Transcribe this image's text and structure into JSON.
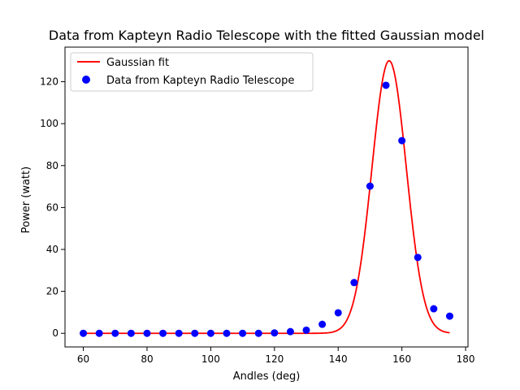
{
  "chart_data": {
    "type": "scatter",
    "title": "Data from Kapteyn Radio Telescope with the fitted Gaussian model",
    "xlabel": "Andles (deg)",
    "ylabel": "Power (watt)",
    "xlim": [
      54.25,
      180.75
    ],
    "ylim": [
      -6.5,
      136.5
    ],
    "xticks": [
      60,
      80,
      100,
      120,
      140,
      160,
      180
    ],
    "yticks": [
      0,
      20,
      40,
      60,
      80,
      100,
      120
    ],
    "grid": false,
    "legend_position": "top-left",
    "series": [
      {
        "name": "Gaussian fit",
        "kind": "line",
        "color": "#ff0000",
        "model": {
          "amplitude": 130,
          "mean": 156,
          "sigma": 5.4,
          "x_start": 60,
          "x_end": 175
        }
      },
      {
        "name": "Data from Kapteyn Radio Telescope",
        "kind": "scatter",
        "color": "#0000ff",
        "x": [
          60,
          65,
          70,
          75,
          80,
          85,
          90,
          95,
          100,
          105,
          110,
          115,
          120,
          125,
          130,
          135,
          140,
          145,
          150,
          155,
          160,
          165,
          170,
          175
        ],
        "y": [
          0,
          0,
          0,
          0,
          0,
          0,
          0,
          0,
          0,
          0,
          0,
          0,
          0.2,
          0.8,
          1.5,
          4.3,
          9.8,
          24.2,
          70.2,
          118.3,
          91.9,
          36.2,
          11.7,
          8.2
        ]
      }
    ]
  }
}
